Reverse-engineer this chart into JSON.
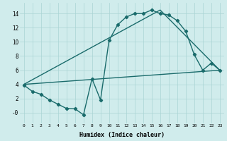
{
  "line1_x": [
    0,
    1,
    2,
    3,
    4,
    5,
    6,
    7,
    8,
    9,
    10,
    11,
    12,
    13,
    14,
    15,
    16,
    17,
    18,
    19,
    20,
    21,
    22,
    23
  ],
  "line1_y": [
    3.9,
    3.0,
    2.6,
    1.8,
    1.2,
    0.6,
    0.55,
    -0.3,
    4.8,
    1.8,
    10.2,
    12.4,
    13.5,
    14.0,
    14.0,
    14.5,
    14.0,
    13.8,
    13.0,
    11.5,
    8.2,
    6.0,
    7.0,
    6.0
  ],
  "line2_x": [
    0,
    23
  ],
  "line2_y": [
    4.0,
    6.0
  ],
  "line3_x": [
    0,
    16,
    23
  ],
  "line3_y": [
    4.0,
    14.5,
    6.0
  ],
  "color": "#1a6b6b",
  "bg_color": "#d0ecec",
  "grid_color": "#aad4d4",
  "xlabel": "Humidex (Indice chaleur)",
  "xlim": [
    -0.5,
    23.5
  ],
  "ylim": [
    -1.5,
    15.5
  ],
  "xticks": [
    0,
    1,
    2,
    3,
    4,
    5,
    6,
    7,
    8,
    9,
    10,
    11,
    12,
    13,
    14,
    15,
    16,
    17,
    18,
    19,
    20,
    21,
    22,
    23
  ],
  "yticks": [
    0,
    2,
    4,
    6,
    8,
    10,
    12,
    14
  ],
  "ytick_labels": [
    "-0",
    "2",
    "4",
    "6",
    "8",
    "10",
    "12",
    "14"
  ],
  "marker": "D",
  "markersize": 2.2,
  "linewidth": 1.0
}
